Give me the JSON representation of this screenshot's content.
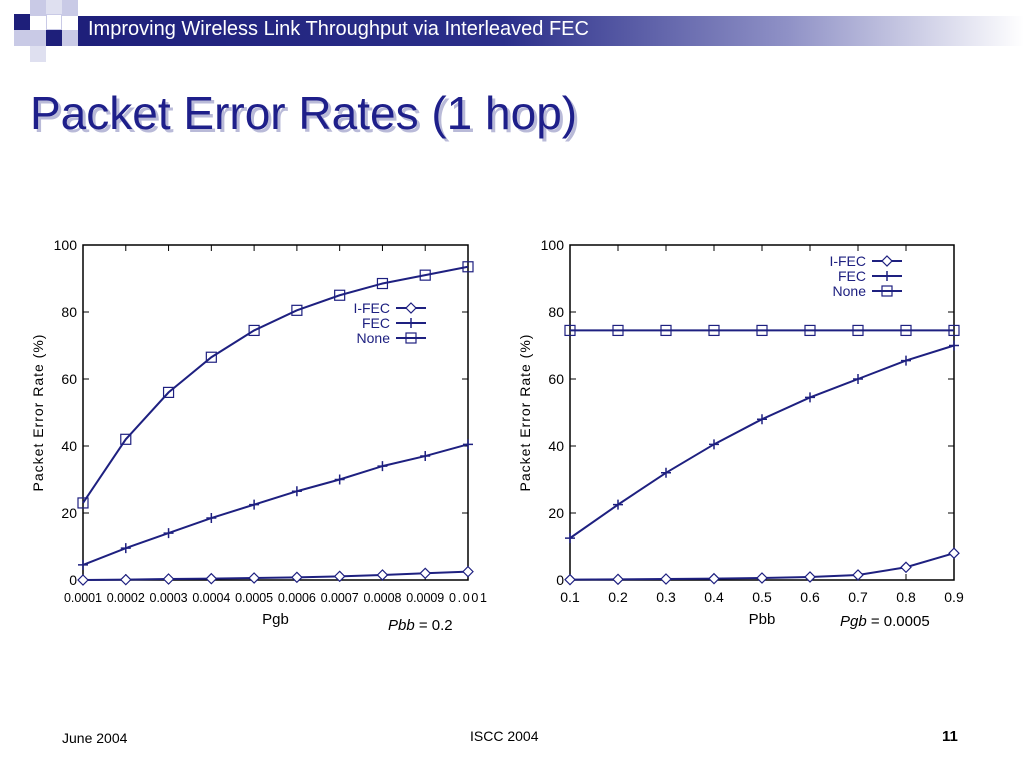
{
  "header": {
    "title": "Improving Wireless Link Throughput via Interleaved FEC"
  },
  "slide": {
    "title": "Packet Error Rates (1 hop)"
  },
  "colors": {
    "series": "#1e2080",
    "header": "#1e1f7a",
    "title": "#1e1f8a"
  },
  "captions": [
    {
      "var": "Pbb",
      "rest": " = 0.2"
    },
    {
      "var": "Pgb",
      "rest": " = 0.0005"
    }
  ],
  "footer": {
    "date": "June 2004",
    "venue": "ISCC 2004",
    "page": "11"
  },
  "chart_data": [
    {
      "type": "line",
      "xlabel": "Pgb",
      "ylabel": "Packet Error Rate (%)",
      "x": [
        0.0001,
        0.0002,
        0.0003,
        0.0004,
        0.0005,
        0.0006,
        0.0007,
        0.0008,
        0.0009,
        0.001
      ],
      "x_tick_labels": [
        "0.0001",
        "0.0002",
        "0.0003",
        "0.0004",
        "0.0005",
        "0.0006",
        "0.0007",
        "0.0008",
        "0.0009",
        "0.001"
      ],
      "ylim": [
        0,
        100
      ],
      "y_ticks": [
        0,
        20,
        40,
        60,
        80,
        100
      ],
      "legend_position": "center-right",
      "series": [
        {
          "name": "I-FEC",
          "marker": "diamond",
          "values": [
            0,
            0.1,
            0.3,
            0.4,
            0.6,
            0.8,
            1.1,
            1.5,
            2.0,
            2.5
          ]
        },
        {
          "name": "FEC",
          "marker": "plus",
          "values": [
            4.5,
            9.5,
            14,
            18.5,
            22.5,
            26.5,
            30,
            34,
            37,
            40.5
          ]
        },
        {
          "name": "None",
          "marker": "square",
          "values": [
            23,
            42,
            56,
            66.5,
            74.5,
            80.5,
            85,
            88.5,
            91,
            93.5
          ]
        }
      ]
    },
    {
      "type": "line",
      "xlabel": "Pbb",
      "ylabel": "Packet Error Rate (%)",
      "x": [
        0.1,
        0.2,
        0.3,
        0.4,
        0.5,
        0.6,
        0.7,
        0.8,
        0.9
      ],
      "x_tick_labels": [
        "0.1",
        "0.2",
        "0.3",
        "0.4",
        "0.5",
        "0.6",
        "0.7",
        "0.8",
        "0.9"
      ],
      "ylim": [
        0,
        100
      ],
      "y_ticks": [
        0,
        20,
        40,
        60,
        80,
        100
      ],
      "legend_position": "top-right",
      "series": [
        {
          "name": "I-FEC",
          "marker": "diamond",
          "values": [
            0.1,
            0.2,
            0.3,
            0.4,
            0.6,
            0.9,
            1.5,
            3.8,
            8
          ]
        },
        {
          "name": "FEC",
          "marker": "plus",
          "values": [
            12.5,
            22.5,
            32,
            40.5,
            48,
            54.5,
            60,
            65.5,
            70
          ]
        },
        {
          "name": "None",
          "marker": "square",
          "values": [
            74.5,
            74.5,
            74.5,
            74.5,
            74.5,
            74.5,
            74.5,
            74.5,
            74.5
          ]
        }
      ]
    }
  ]
}
